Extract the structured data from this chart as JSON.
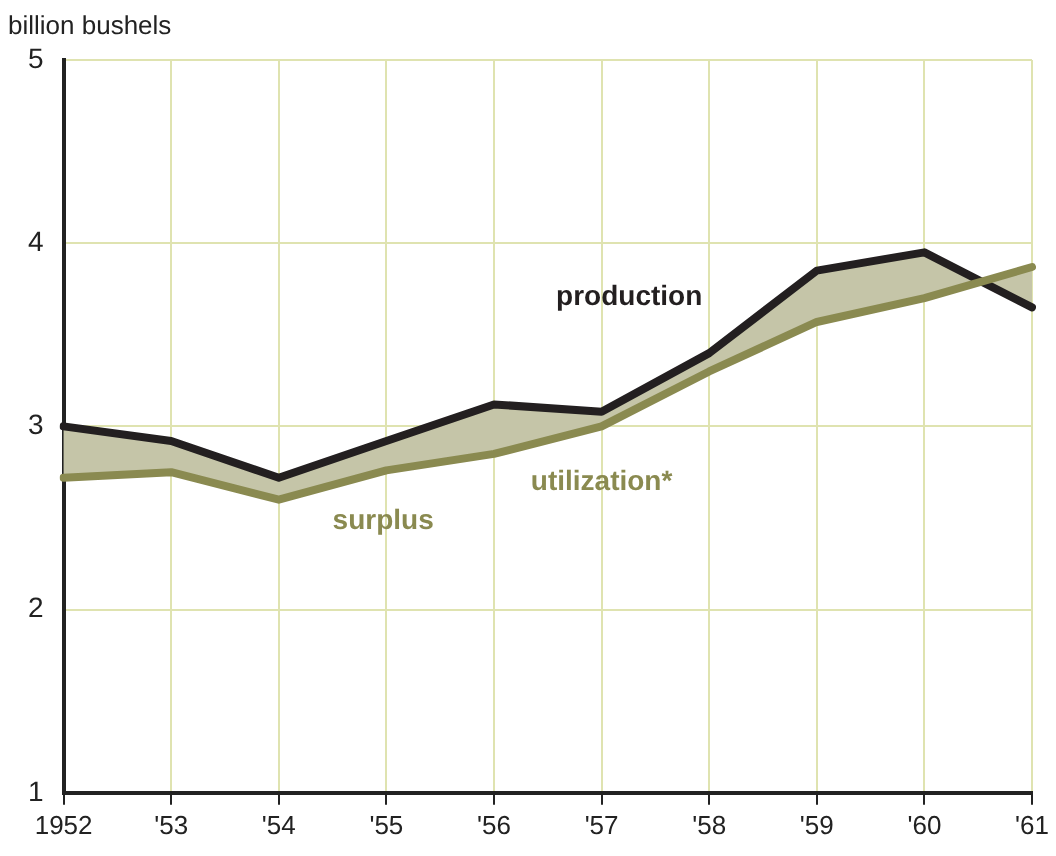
{
  "chart_data": {
    "type": "line",
    "ylabel": "billion bushels",
    "categories": [
      "1952",
      "'53",
      "'54",
      "'55",
      "'56",
      "'57",
      "'58",
      "'59",
      "'60",
      "'61"
    ],
    "series": [
      {
        "name": "production",
        "color": "#231f20",
        "values": [
          3.0,
          2.92,
          2.72,
          2.92,
          3.12,
          3.08,
          3.4,
          3.85,
          3.95,
          3.65
        ],
        "lower": [
          2.72,
          2.75,
          2.6,
          2.76,
          2.85,
          3.0,
          3.3,
          3.57,
          3.7,
          3.87
        ],
        "upper": [
          3.0,
          2.92,
          2.72,
          2.92,
          3.12,
          3.08,
          3.4,
          3.85,
          3.95,
          3.65
        ]
      },
      {
        "name": "utilization*",
        "color": "#8a8a50",
        "values": [
          2.72,
          2.75,
          2.6,
          2.76,
          2.85,
          3.0,
          3.3,
          3.57,
          3.7,
          3.87
        ]
      }
    ],
    "annotations": [
      "surplus"
    ],
    "ylim": [
      1,
      5
    ],
    "yticks": [
      1,
      2,
      3,
      4,
      5
    ],
    "grid": true,
    "legend": false,
    "marker": "none",
    "line_style": "solid"
  }
}
